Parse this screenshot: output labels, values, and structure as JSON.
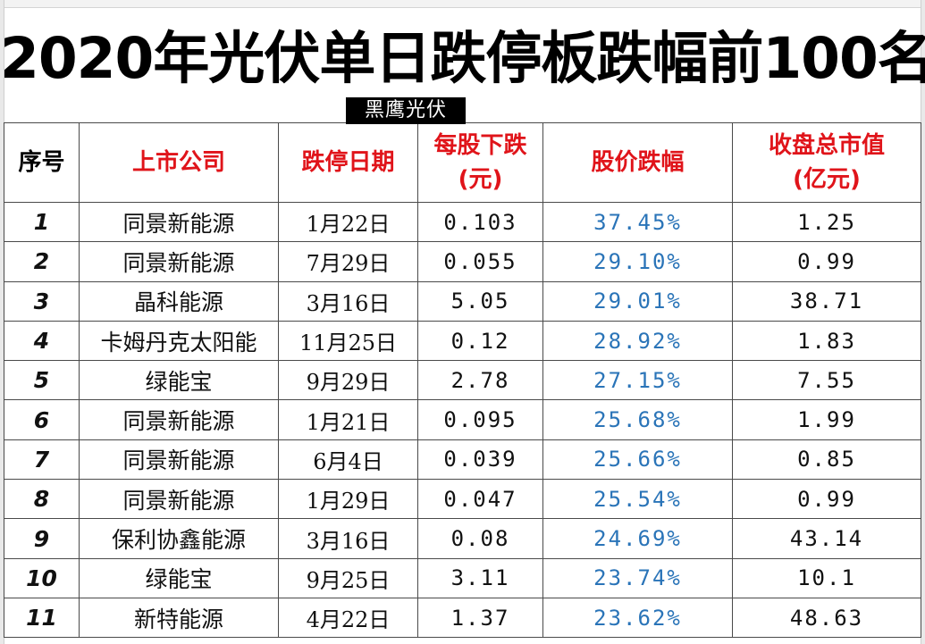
{
  "title": "2020年光伏单日跌停板跌幅前100名",
  "watermark": "黑鹰光伏",
  "colors": {
    "header_red": "#e0141a",
    "percent_blue": "#2a74b8",
    "border": "#4a4a4a"
  },
  "headers": {
    "index": "序号",
    "company": "上市公司",
    "date": "跌停日期",
    "drop_line1": "每股下跌",
    "drop_line2": "(元)",
    "pct": "股价跌幅",
    "cap_line1": "收盘总市值",
    "cap_line2": "(亿元)"
  },
  "rows": [
    {
      "index": "1",
      "company": "同景新能源",
      "date": "1月22日",
      "drop": "0.103",
      "pct": "37.45%",
      "cap": "1.25"
    },
    {
      "index": "2",
      "company": "同景新能源",
      "date": "7月29日",
      "drop": "0.055",
      "pct": "29.10%",
      "cap": "0.99"
    },
    {
      "index": "3",
      "company": "晶科能源",
      "date": "3月16日",
      "drop": "5.05",
      "pct": "29.01%",
      "cap": "38.71"
    },
    {
      "index": "4",
      "company": "卡姆丹克太阳能",
      "date": "11月25日",
      "drop": "0.12",
      "pct": "28.92%",
      "cap": "1.83"
    },
    {
      "index": "5",
      "company": "绿能宝",
      "date": "9月29日",
      "drop": "2.78",
      "pct": "27.15%",
      "cap": "7.55"
    },
    {
      "index": "6",
      "company": "同景新能源",
      "date": "1月21日",
      "drop": "0.095",
      "pct": "25.68%",
      "cap": "1.99"
    },
    {
      "index": "7",
      "company": "同景新能源",
      "date": "6月4日",
      "drop": "0.039",
      "pct": "25.66%",
      "cap": "0.85"
    },
    {
      "index": "8",
      "company": "同景新能源",
      "date": "1月29日",
      "drop": "0.047",
      "pct": "25.54%",
      "cap": "0.99"
    },
    {
      "index": "9",
      "company": "保利协鑫能源",
      "date": "3月16日",
      "drop": "0.08",
      "pct": "24.69%",
      "cap": "43.14"
    },
    {
      "index": "10",
      "company": "绿能宝",
      "date": "9月25日",
      "drop": "3.11",
      "pct": "23.74%",
      "cap": "10.1"
    },
    {
      "index": "11",
      "company": "新特能源",
      "date": "4月22日",
      "drop": "1.37",
      "pct": "23.62%",
      "cap": "48.63"
    }
  ]
}
